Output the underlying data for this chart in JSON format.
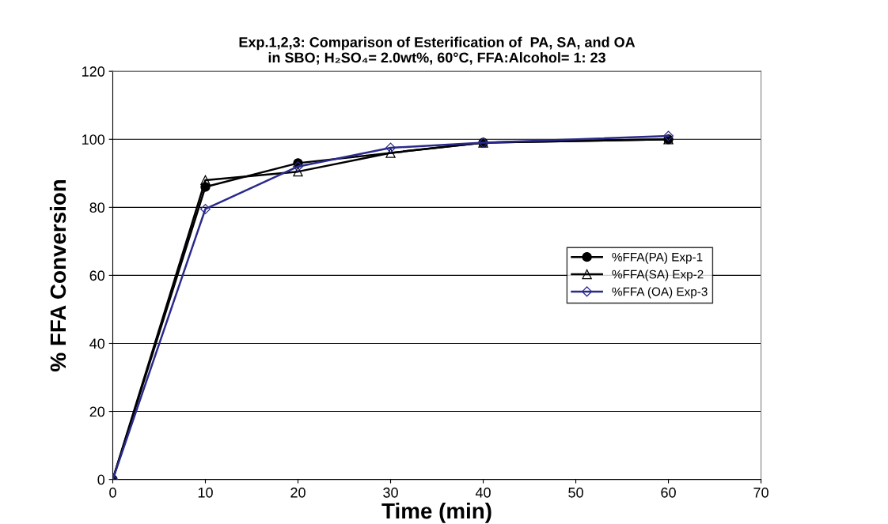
{
  "chart_data": {
    "type": "line",
    "title": "Exp.1,2,3: Comparison of Esterification of  PA, SA, and OA\nin SBO; H₂SO₄= 2.0wt%, 60°C, FFA:Alcohol= 1: 23",
    "xlabel": "Time (min)",
    "ylabel": "% FFA Conversion",
    "xlim": [
      0,
      70
    ],
    "xticks": [
      0,
      10,
      20,
      30,
      40,
      50,
      60,
      70
    ],
    "ylim": [
      0,
      120
    ],
    "yticks": [
      0,
      20,
      40,
      60,
      80,
      100,
      120
    ],
    "grid": "y",
    "legend": "right",
    "line_style": "solid",
    "series": [
      {
        "name": "%FFA(PA) Exp-1",
        "color": "#000000",
        "marker": "circle",
        "x": [
          0,
          10,
          20,
          40,
          60
        ],
        "values": [
          0,
          86,
          93,
          99,
          100
        ]
      },
      {
        "name": "%FFA(SA) Exp-2",
        "color": "#000000",
        "marker": "triangle",
        "x": [
          0,
          10,
          20,
          30,
          40,
          60
        ],
        "values": [
          0,
          88,
          90.5,
          96,
          99,
          100
        ]
      },
      {
        "name": "%FFA (OA) Exp-3",
        "color": "#2a2a8c",
        "marker": "diamond",
        "x": [
          0,
          10,
          20,
          30,
          40,
          60
        ],
        "values": [
          0,
          79.5,
          92,
          97.5,
          99,
          101
        ]
      }
    ]
  }
}
